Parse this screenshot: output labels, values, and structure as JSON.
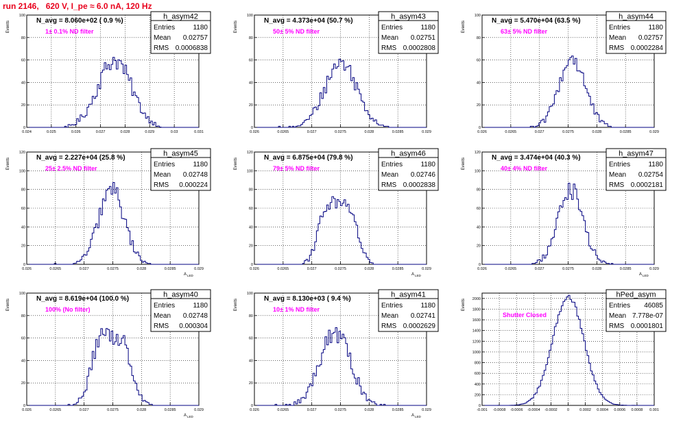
{
  "page_title": "run 2146,   620 V, I_pe ≈ 6.0 nA, 120 Hz",
  "colors": {
    "title": "#e8001c",
    "hist_line": "#000080",
    "annotation": "#ff00ff",
    "grid": "#000000"
  },
  "stats_labels": {
    "entries": "Entries",
    "mean": "Mean",
    "rms": "RMS"
  },
  "chart_data": [
    {
      "type": "bar",
      "name": "h_asym42",
      "title": "N_avg = 8.060e+02 ( 0.9 %)",
      "annotation": "1± 0.1% ND filter",
      "stats": {
        "entries": "1180",
        "mean": "0.02757",
        "rms": "0.0006838"
      },
      "ylabel": "Events",
      "xlabel": "",
      "xlim": [
        0.024,
        0.031
      ],
      "ylim": [
        0,
        100
      ],
      "xticks": [
        "0.024",
        "0.025",
        "0.026",
        "0.027",
        "0.028",
        "0.029",
        "0.03",
        "0.031"
      ],
      "yticks": [
        "0",
        "20",
        "40",
        "60",
        "80",
        "100"
      ],
      "grid": true,
      "mu": 0.02757,
      "sigma": 0.000684,
      "peak": 60
    },
    {
      "type": "bar",
      "name": "h_asym43",
      "title": "N_avg = 4.373e+04 (50.7 %)",
      "annotation": "50± 5% ND filter",
      "stats": {
        "entries": "1180",
        "mean": "0.02751",
        "rms": "0.0002808"
      },
      "ylabel": "Events",
      "xlabel": "",
      "xlim": [
        0.026,
        0.029
      ],
      "ylim": [
        0,
        100
      ],
      "xticks": [
        "0.026",
        "0.0265",
        "0.027",
        "0.0275",
        "0.028",
        "0.0285",
        "0.029"
      ],
      "yticks": [
        "0",
        "20",
        "40",
        "60",
        "80",
        "100"
      ],
      "grid": true,
      "mu": 0.02751,
      "sigma": 0.000281,
      "peak": 58
    },
    {
      "type": "bar",
      "name": "h_asym44",
      "title": "N_avg = 5.470e+04 (63.5 %)",
      "annotation": "63± 5% ND filter",
      "stats": {
        "entries": "1180",
        "mean": "0.02757",
        "rms": "0.0002284"
      },
      "ylabel": "Events",
      "xlabel": "",
      "xlim": [
        0.026,
        0.029
      ],
      "ylim": [
        0,
        100
      ],
      "xticks": [
        "0.026",
        "0.0265",
        "0.027",
        "0.0275",
        "0.028",
        "0.0285",
        "0.029"
      ],
      "yticks": [
        "0",
        "20",
        "40",
        "60",
        "80",
        "100"
      ],
      "grid": true,
      "mu": 0.02757,
      "sigma": 0.000228,
      "peak": 62
    },
    {
      "type": "bar",
      "name": "h_asym45",
      "title": "N_avg = 2.227e+04 (25.8 %)",
      "annotation": "25± 2.5% ND filter",
      "stats": {
        "entries": "1180",
        "mean": "0.02748",
        "rms": "0.000224"
      },
      "ylabel": "Events",
      "xlabel": "A",
      "xlim": [
        0.026,
        0.029
      ],
      "ylim": [
        0,
        120
      ],
      "xticks": [
        "0.026",
        "0.0265",
        "0.027",
        "0.0275",
        "0.028",
        "0.0285",
        "0.029"
      ],
      "yticks": [
        "0",
        "20",
        "40",
        "60",
        "80",
        "100",
        "120"
      ],
      "grid": true,
      "mu": 0.02748,
      "sigma": 0.000224,
      "peak": 80
    },
    {
      "type": "bar",
      "name": "h_asym46",
      "title": "N_avg = 6.875e+04 (79.8 %)",
      "annotation": "79± 5% ND filter",
      "stats": {
        "entries": "1180",
        "mean": "0.02746",
        "rms": "0.0002838"
      },
      "ylabel": "Events",
      "xlabel": "A",
      "xlim": [
        0.026,
        0.029
      ],
      "ylim": [
        0,
        120
      ],
      "xticks": [
        "0.026",
        "0.0265",
        "0.027",
        "0.0275",
        "0.028",
        "0.0285",
        "0.029"
      ],
      "yticks": [
        "0",
        "20",
        "40",
        "60",
        "80",
        "100",
        "120"
      ],
      "grid": true,
      "mu": 0.02746,
      "sigma": 0.000284,
      "peak": 62,
      "bimodal": true
    },
    {
      "type": "bar",
      "name": "h_asym47",
      "title": "N_avg = 3.474e+04 (40.3 %)",
      "annotation": "40± 4% ND filter",
      "stats": {
        "entries": "1180",
        "mean": "0.02754",
        "rms": "0.0002181"
      },
      "ylabel": "Events",
      "xlabel": "A",
      "xlim": [
        0.026,
        0.029
      ],
      "ylim": [
        0,
        120
      ],
      "xticks": [
        "0.026",
        "0.0265",
        "0.027",
        "0.0275",
        "0.028",
        "0.0285",
        "0.029"
      ],
      "yticks": [
        "0",
        "20",
        "40",
        "60",
        "80",
        "100",
        "120"
      ],
      "grid": true,
      "mu": 0.02754,
      "sigma": 0.000218,
      "peak": 80
    },
    {
      "type": "bar",
      "name": "h_asym40",
      "title": "N_avg = 8.619e+04 (100.0 %)",
      "annotation": "100% (No filter)",
      "stats": {
        "entries": "1180",
        "mean": "0.02748",
        "rms": "0.000304"
      },
      "ylabel": "Events",
      "xlabel": "A",
      "xlim": [
        0.026,
        0.029
      ],
      "ylim": [
        0,
        100
      ],
      "xticks": [
        "0.026",
        "0.0265",
        "0.027",
        "0.0275",
        "0.028",
        "0.0285",
        "0.029"
      ],
      "yticks": [
        "0",
        "20",
        "40",
        "60",
        "80",
        "100"
      ],
      "grid": true,
      "mu": 0.02748,
      "sigma": 0.000304,
      "peak": 58,
      "bimodal": true
    },
    {
      "type": "bar",
      "name": "h_asym41",
      "title": "N_avg = 8.130e+03 ( 9.4 %)",
      "annotation": "10± 1% ND filter",
      "stats": {
        "entries": "1180",
        "mean": "0.02741",
        "rms": "0.0002629"
      },
      "ylabel": "Events",
      "xlabel": "A",
      "xlim": [
        0.026,
        0.029
      ],
      "ylim": [
        0,
        100
      ],
      "xticks": [
        "0.026",
        "0.0265",
        "0.027",
        "0.0275",
        "0.028",
        "0.0285",
        "0.029"
      ],
      "yticks": [
        "0",
        "20",
        "40",
        "60",
        "80",
        "100"
      ],
      "grid": true,
      "mu": 0.02741,
      "sigma": 0.000263,
      "peak": 65
    },
    {
      "type": "bar",
      "name": "hPed_asym",
      "title": "",
      "annotation": "Shutter Closed",
      "stats": {
        "entries": "46085",
        "mean": "7.778e-07",
        "rms": "0.0001801"
      },
      "ylabel": "Events",
      "xlabel": "",
      "xlim": [
        -0.001,
        0.001
      ],
      "ylim": [
        0,
        2100
      ],
      "xticks": [
        "-0.001",
        "-0.0008",
        "-0.0006",
        "-0.0004",
        "-0.0002",
        "0",
        "0.0002",
        "0.0004",
        "0.0006",
        "0.0008",
        "0.001"
      ],
      "yticks": [
        "0",
        "200",
        "400",
        "600",
        "800",
        "1000",
        "1200",
        "1400",
        "1600",
        "1800",
        "2000"
      ],
      "grid": true,
      "mu": 0.0,
      "sigma": 0.00018,
      "peak": 2040
    }
  ]
}
